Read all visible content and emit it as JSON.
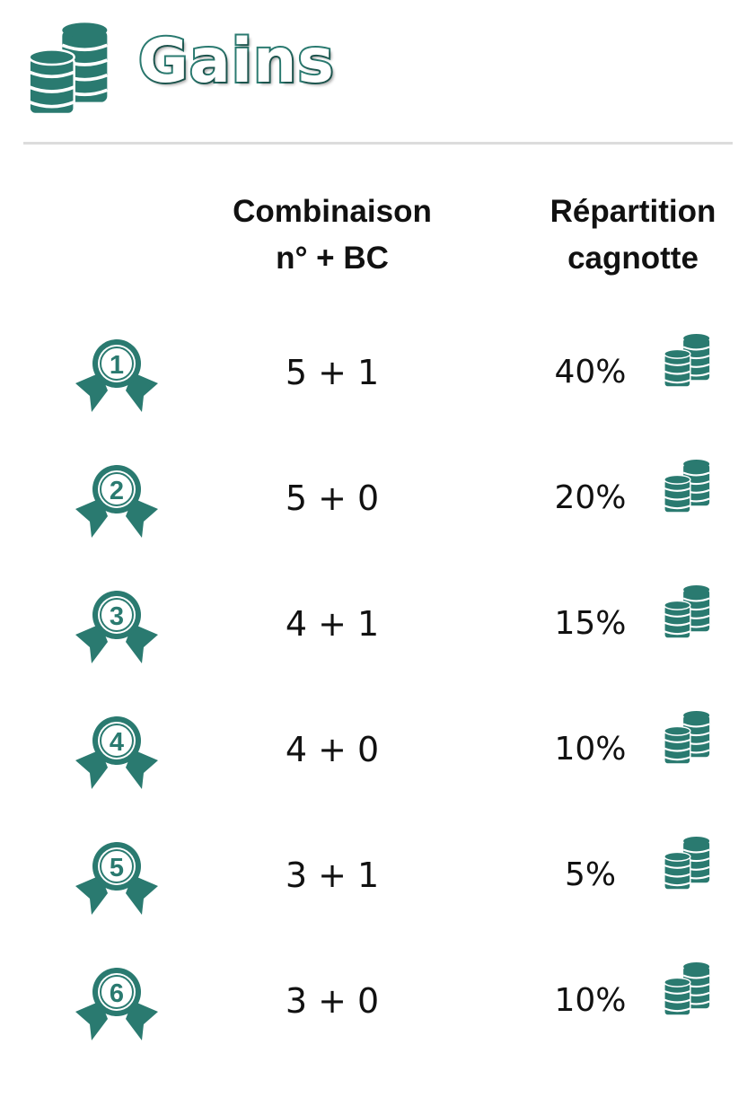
{
  "header": {
    "title": "Gains",
    "icon": "coin-stack-icon"
  },
  "columns": {
    "combination": [
      "Combinaison",
      "n° + BC"
    ],
    "distribution": [
      "Répartition",
      "cagnotte"
    ]
  },
  "colors": {
    "accent": "#2a7a70"
  },
  "rows": [
    {
      "rank": "1",
      "combination": "5 + 1",
      "percent": "40%"
    },
    {
      "rank": "2",
      "combination": "5 + 0",
      "percent": "20%"
    },
    {
      "rank": "3",
      "combination": "4 + 1",
      "percent": "15%"
    },
    {
      "rank": "4",
      "combination": "4 + 0",
      "percent": "10%"
    },
    {
      "rank": "5",
      "combination": "3 + 1",
      "percent": "5%"
    },
    {
      "rank": "6",
      "combination": "3 + 0",
      "percent": "10%"
    }
  ]
}
